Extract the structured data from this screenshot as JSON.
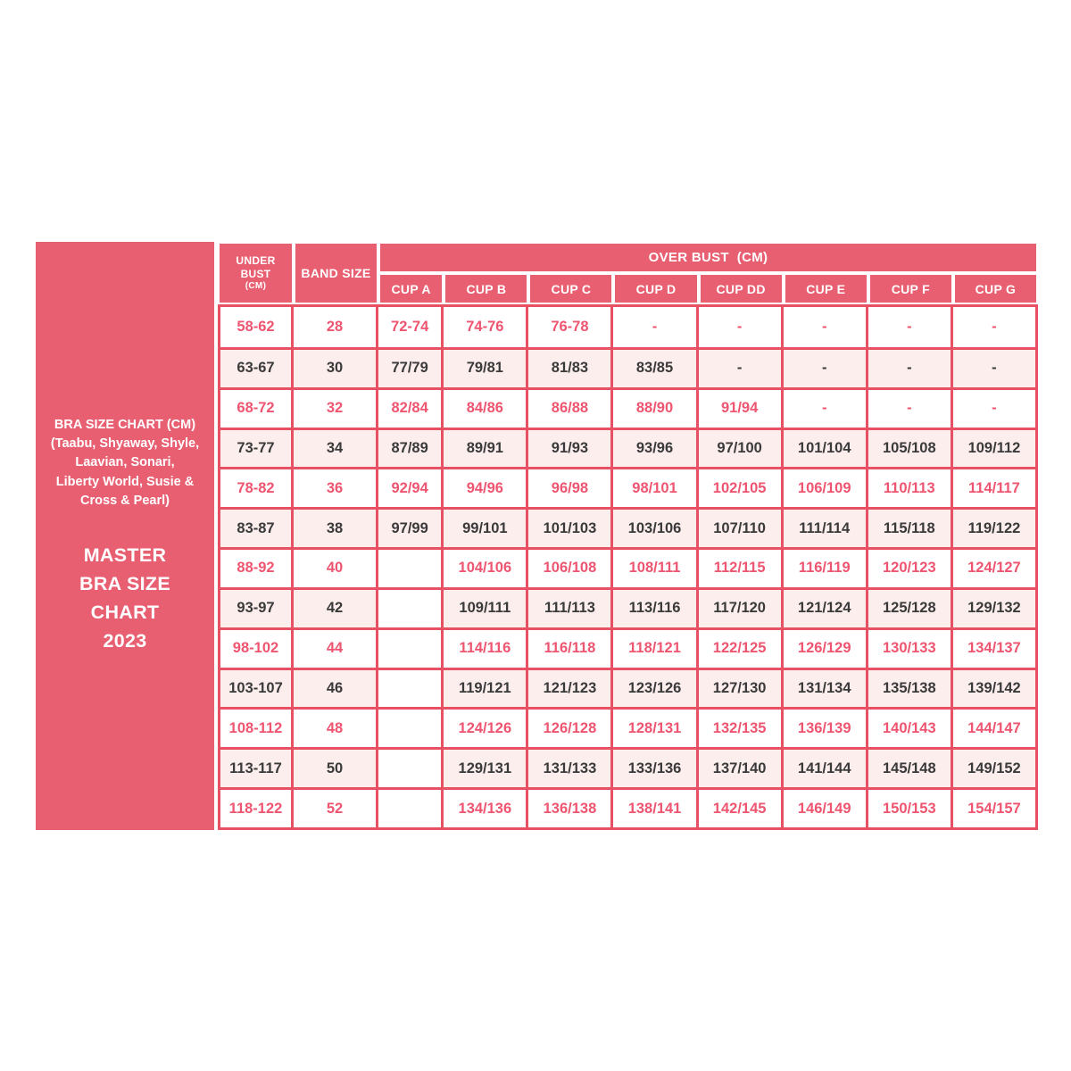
{
  "page": {
    "background": "#ffffff"
  },
  "colors": {
    "header_pink": "#e85f71",
    "grid_red": "#e85064",
    "row_tint": "#fdeeee",
    "value_pink": "#ee5570",
    "value_dark": "#3a3a3a"
  },
  "sidebar": {
    "subtitle": "BRA SIZE CHART (CM)\n(Taabu, Shyaway, Shyle,\nLaavian, Sonari,\nLiberty World, Susie &\nCross & Pearl)",
    "title": "MASTER\nBRA SIZE CHART\n2023"
  },
  "chart_data": {
    "type": "table",
    "title": "MASTER BRA SIZE CHART 2023",
    "headers": {
      "under_bust_label": "UNDER BUST",
      "under_bust_unit": "(CM)",
      "band_size": "BAND SIZE",
      "over_bust": "OVER BUST  (CM)",
      "cups": [
        "CUP A",
        "CUP B",
        "CUP C",
        "CUP D",
        "CUP DD",
        "CUP E",
        "CUP F",
        "CUP G"
      ]
    },
    "rows": [
      {
        "under_bust": "58-62",
        "band_size": "28",
        "cups": [
          "72-74",
          "74-76",
          "76-78",
          "-",
          "-",
          "-",
          "-",
          "-"
        ]
      },
      {
        "under_bust": "63-67",
        "band_size": "30",
        "cups": [
          "77/79",
          "79/81",
          "81/83",
          "83/85",
          "-",
          "-",
          "-",
          "-"
        ]
      },
      {
        "under_bust": "68-72",
        "band_size": "32",
        "cups": [
          "82/84",
          "84/86",
          "86/88",
          "88/90",
          "91/94",
          "-",
          "-",
          "-"
        ]
      },
      {
        "under_bust": "73-77",
        "band_size": "34",
        "cups": [
          "87/89",
          "89/91",
          "91/93",
          "93/96",
          "97/100",
          "101/104",
          "105/108",
          "109/112"
        ]
      },
      {
        "under_bust": "78-82",
        "band_size": "36",
        "cups": [
          "92/94",
          "94/96",
          "96/98",
          "98/101",
          "102/105",
          "106/109",
          "110/113",
          "114/117"
        ]
      },
      {
        "under_bust": "83-87",
        "band_size": "38",
        "cups": [
          "97/99",
          "99/101",
          "101/103",
          "103/106",
          "107/110",
          "111/114",
          "115/118",
          "119/122"
        ]
      },
      {
        "under_bust": "88-92",
        "band_size": "40",
        "cups": [
          "",
          "104/106",
          "106/108",
          "108/111",
          "112/115",
          "116/119",
          "120/123",
          "124/127"
        ]
      },
      {
        "under_bust": "93-97",
        "band_size": "42",
        "cups": [
          "",
          "109/111",
          "111/113",
          "113/116",
          "117/120",
          "121/124",
          "125/128",
          "129/132"
        ]
      },
      {
        "under_bust": "98-102",
        "band_size": "44",
        "cups": [
          "",
          "114/116",
          "116/118",
          "118/121",
          "122/125",
          "126/129",
          "130/133",
          "134/137"
        ]
      },
      {
        "under_bust": "103-107",
        "band_size": "46",
        "cups": [
          "",
          "119/121",
          "121/123",
          "123/126",
          "127/130",
          "131/134",
          "135/138",
          "139/142"
        ]
      },
      {
        "under_bust": "108-112",
        "band_size": "48",
        "cups": [
          "",
          "124/126",
          "126/128",
          "128/131",
          "132/135",
          "136/139",
          "140/143",
          "144/147"
        ]
      },
      {
        "under_bust": "113-117",
        "band_size": "50",
        "cups": [
          "",
          "129/131",
          "131/133",
          "133/136",
          "137/140",
          "141/144",
          "145/148",
          "149/152"
        ]
      },
      {
        "under_bust": "118-122",
        "band_size": "52",
        "cups": [
          "",
          "134/136",
          "136/138",
          "138/141",
          "142/145",
          "146/149",
          "150/153",
          "154/157"
        ]
      }
    ]
  }
}
